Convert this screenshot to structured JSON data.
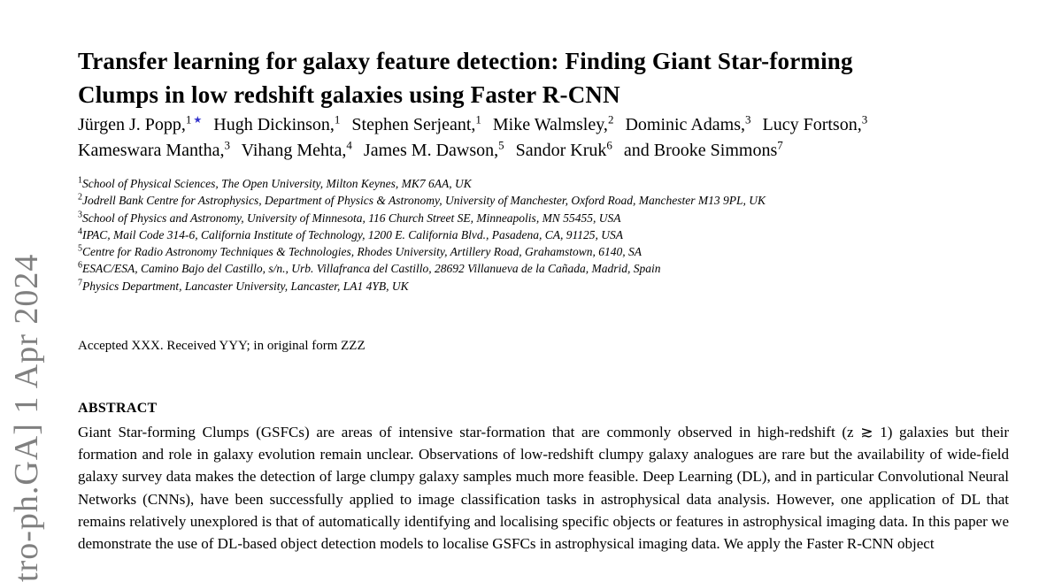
{
  "banner": {
    "text": "tro-ph.GA] 1 Apr 2024"
  },
  "title": {
    "line1": "Transfer learning for galaxy feature detection: Finding Giant Star-forming",
    "line2": "Clumps in low redshift galaxies using Faster R-CNN"
  },
  "authors": [
    {
      "name": "Jürgen J. Popp,",
      "sup": "1",
      "star": "★"
    },
    {
      "name": "Hugh Dickinson,",
      "sup": "1"
    },
    {
      "name": "Stephen Serjeant,",
      "sup": "1"
    },
    {
      "name": "Mike Walmsley,",
      "sup": "2"
    },
    {
      "name": "Dominic Adams,",
      "sup": "3"
    },
    {
      "name": "Lucy Fortson,",
      "sup": "3"
    },
    {
      "name": "Kameswara Mantha,",
      "sup": "3"
    },
    {
      "name": "Vihang Mehta,",
      "sup": "4"
    },
    {
      "name": "James M. Dawson,",
      "sup": "5"
    },
    {
      "name": "Sandor Kruk",
      "sup": "6"
    },
    {
      "name": "and Brooke Simmons",
      "sup": "7"
    }
  ],
  "affiliations": [
    {
      "sup": "1",
      "text": "School of Physical Sciences, The Open University, Milton Keynes, MK7 6AA, UK"
    },
    {
      "sup": "2",
      "text": "Jodrell Bank Centre for Astrophysics, Department of Physics & Astronomy, University of Manchester, Oxford Road, Manchester M13 9PL, UK"
    },
    {
      "sup": "3",
      "text": "School of Physics and Astronomy, University of Minnesota, 116 Church Street SE, Minneapolis, MN 55455, USA"
    },
    {
      "sup": "4",
      "text": "IPAC, Mail Code 314-6, California Institute of Technology, 1200 E. California Blvd., Pasadena, CA, 91125, USA"
    },
    {
      "sup": "5",
      "text": "Centre for Radio Astronomy Techniques & Technologies, Rhodes University, Artillery Road, Grahamstown, 6140, SA"
    },
    {
      "sup": "6",
      "text": "ESAC/ESA, Camino Bajo del Castillo, s/n., Urb. Villafranca del Castillo, 28692 Villanueva de la Cañada, Madrid, Spain"
    },
    {
      "sup": "7",
      "text": "Physics Department, Lancaster University, Lancaster, LA1 4YB, UK"
    }
  ],
  "dates_line": "Accepted XXX. Received YYY; in original form ZZZ",
  "abstract": {
    "heading": "ABSTRACT",
    "text": "Giant Star-forming Clumps (GSFCs) are areas of intensive star-formation that are commonly observed in high-redshift (z ≳ 1) galaxies but their formation and role in galaxy evolution remain unclear. Observations of low-redshift clumpy galaxy analogues are rare but the availability of wide-field galaxy survey data makes the detection of large clumpy galaxy samples much more feasible. Deep Learning (DL), and in particular Convolutional Neural Networks (CNNs), have been successfully applied to image classification tasks in astrophysical data analysis. However, one application of DL that remains relatively unexplored is that of automatically identifying and localising specific objects or features in astrophysical imaging data. In this paper we demonstrate the use of DL-based object detection models to localise GSFCs in astrophysical imaging data. We apply the Faster R-CNN object"
  },
  "colors": {
    "banner_gray": "#808080",
    "star_blue": "#3333cc"
  }
}
